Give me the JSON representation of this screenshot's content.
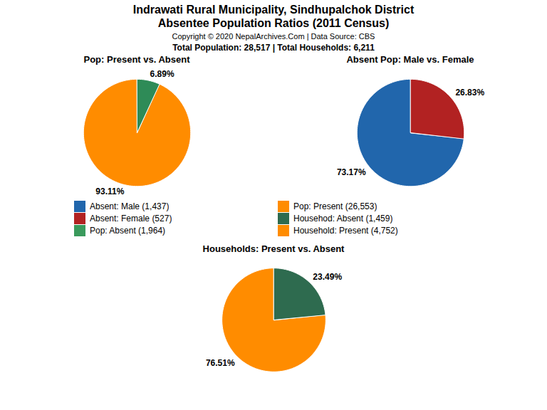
{
  "title": "Indrawati Rural Municipality, Sindhupalchok District",
  "subtitle": "Absentee Population Ratios (2011 Census)",
  "annotations": [
    "Copyright © 2020 NepalArchives.Com | Data Source: CBS",
    "Total Population: 28,517 | Total Households: 6,211"
  ],
  "series": [
    {
      "name": "Absent: Male (1,437)",
      "color": "#2166AC"
    },
    {
      "name": "Absent: Female (527)",
      "color": "#B22222"
    },
    {
      "name": "Pop: Absent (1,964)",
      "color": "#3A9A5C"
    },
    {
      "name": "Pop: Present (26,553)",
      "color": "#FF8C00"
    },
    {
      "name": "Househod: Absent (1,459)",
      "color": "#2E6B4F"
    },
    {
      "name": "Household: Present (4,752)",
      "color": "#FF8C00"
    }
  ],
  "chart_data": [
    {
      "type": "pie",
      "title": "Pop: Present vs. Absent",
      "values": [
        93.11,
        6.89
      ],
      "value_labels": [
        "93.11%",
        "6.89%"
      ],
      "colors": [
        "#FF8C00",
        "#2E8B57"
      ],
      "data_labels": true
    },
    {
      "type": "pie",
      "title": "Absent Pop: Male vs. Female",
      "values": [
        73.17,
        26.83
      ],
      "value_labels": [
        "73.17%",
        "26.83%"
      ],
      "colors": [
        "#2166AC",
        "#B22222"
      ],
      "data_labels": true
    },
    {
      "type": "pie",
      "title": "Households: Present vs. Absent",
      "values": [
        76.51,
        23.49
      ],
      "value_labels": [
        "76.51%",
        "23.49%"
      ],
      "colors": [
        "#FF8C00",
        "#2E6B4F"
      ],
      "data_labels": true
    }
  ]
}
